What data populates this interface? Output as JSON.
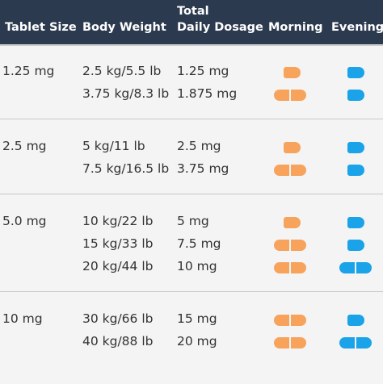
{
  "headers": {
    "tablet_size": "Tablet Size",
    "body_weight": "Body Weight",
    "total_line1": "Total",
    "total_line2": "Daily Dosage",
    "morning": "Morning",
    "evening": "Evening"
  },
  "colors": {
    "header_bg": "#2b3a4e",
    "morning_pill": "#f7a35c",
    "evening_pill": "#1aa3e8"
  },
  "groups": [
    {
      "tablet": "1.25 mg",
      "rows": [
        {
          "weight": "2.5 kg/5.5 lb",
          "dosage": "1.25 mg",
          "morning_tablets": 1,
          "evening_tablets": 1
        },
        {
          "weight": "3.75 kg/8.3 lb",
          "dosage": "1.875 mg",
          "morning_tablets": 2,
          "evening_tablets": 1
        }
      ]
    },
    {
      "tablet": "2.5 mg",
      "rows": [
        {
          "weight": "5 kg/11 lb",
          "dosage": "2.5 mg",
          "morning_tablets": 1,
          "evening_tablets": 1
        },
        {
          "weight": "7.5 kg/16.5 lb",
          "dosage": "3.75 mg",
          "morning_tablets": 2,
          "evening_tablets": 1
        }
      ]
    },
    {
      "tablet": "5.0 mg",
      "rows": [
        {
          "weight": "10 kg/22 lb",
          "dosage": "5 mg",
          "morning_tablets": 1,
          "evening_tablets": 1
        },
        {
          "weight": "15 kg/33 lb",
          "dosage": "7.5 mg",
          "morning_tablets": 2,
          "evening_tablets": 1
        },
        {
          "weight": "20 kg/44 lb",
          "dosage": "10 mg",
          "morning_tablets": 2,
          "evening_tablets": 2
        }
      ]
    },
    {
      "tablet": "10 mg",
      "rows": [
        {
          "weight": "30 kg/66 lb",
          "dosage": "15 mg",
          "morning_tablets": 2,
          "evening_tablets": 1
        },
        {
          "weight": "40 kg/88 lb",
          "dosage": "20 mg",
          "morning_tablets": 2,
          "evening_tablets": 2
        }
      ]
    }
  ]
}
